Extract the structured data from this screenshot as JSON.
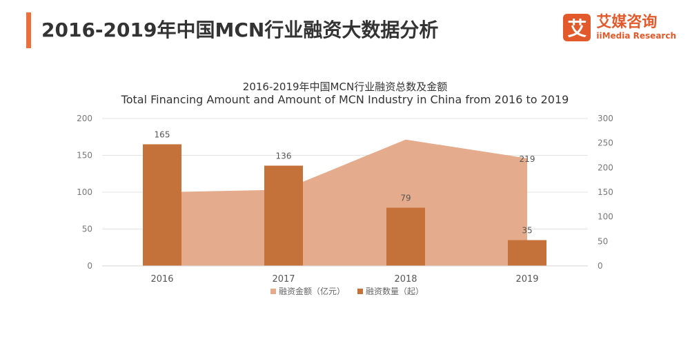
{
  "header": {
    "title": "2016-2019年中国MCN行业融资大数据分析"
  },
  "logo": {
    "mark": "艾",
    "name_cn": "艾媒咨询",
    "name_en": "iiMedia Research"
  },
  "colors": {
    "accent": "#e8703a",
    "bar": "#c5723a",
    "area": "#e4ab8c",
    "logo": "#e25a2c"
  },
  "chart_data": {
    "type": "bar",
    "title": "2016-2019年中国MCN行业融资总数及金额",
    "subtitle": "Total Financing Amount and Amount of MCN Industry in China from 2016 to 2019",
    "categories": [
      "2016",
      "2017",
      "2018",
      "2019"
    ],
    "series": [
      {
        "name": "融资金额（亿元）",
        "type": "area",
        "axis": "right",
        "values": [
          150,
          155,
          257,
          219
        ],
        "labels": [
          "",
          "",
          "",
          "219"
        ]
      },
      {
        "name": "融资数量（起）",
        "type": "bar",
        "axis": "left",
        "values": [
          165,
          136,
          79,
          35
        ],
        "labels": [
          "165",
          "136",
          "79",
          "35"
        ]
      }
    ],
    "y_left": {
      "min": 0,
      "max": 200,
      "ticks": [
        "0",
        "50",
        "100",
        "150",
        "200"
      ]
    },
    "y_right": {
      "min": 0,
      "max": 300,
      "ticks": [
        "0",
        "50",
        "100",
        "150",
        "200",
        "250",
        "300"
      ]
    },
    "grid": true,
    "legend_position": "bottom"
  }
}
